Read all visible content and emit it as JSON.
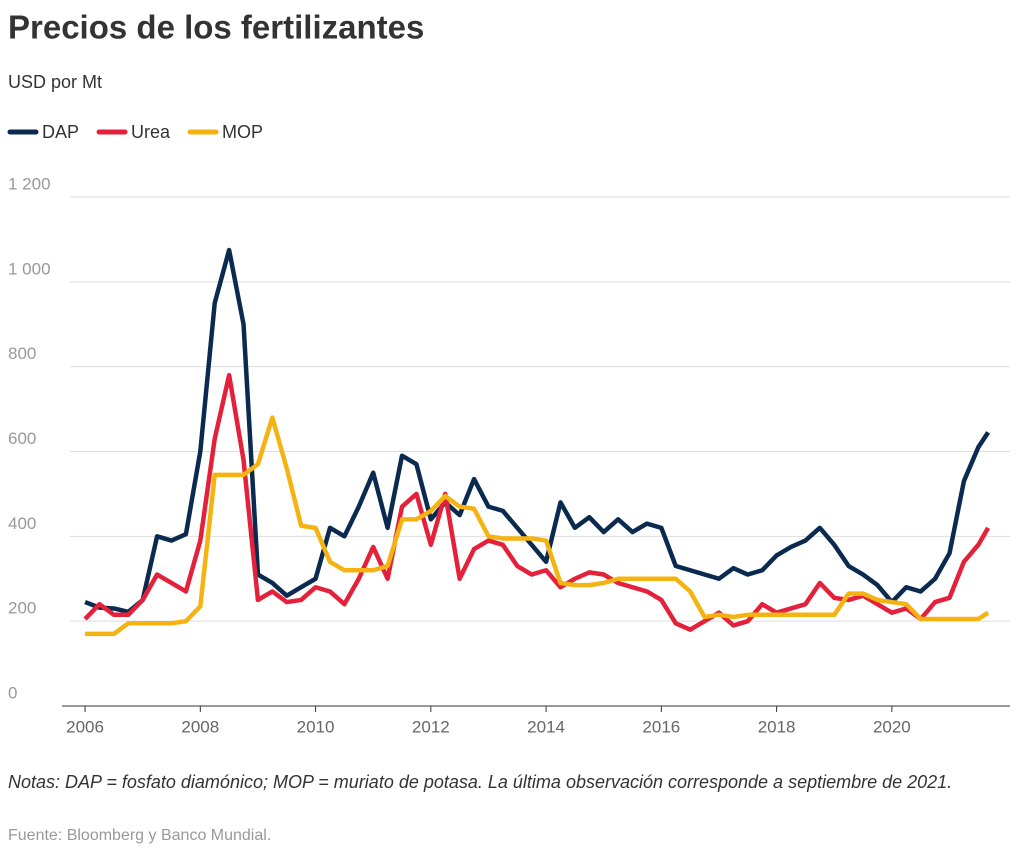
{
  "chart_data": {
    "type": "line",
    "title": "Precios de los fertilizantes",
    "subtitle": "USD por Mt",
    "note": "Notas: DAP = fosfato diamónico; MOP = muriato de potasa. La última observación corresponde a septiembre de 2021.",
    "source": "Fuente: Bloomberg y Banco Mundial.",
    "x": [
      2006,
      2006.25,
      2006.5,
      2006.75,
      2007,
      2007.25,
      2007.5,
      2007.75,
      2008,
      2008.25,
      2008.5,
      2008.75,
      2009,
      2009.25,
      2009.5,
      2009.75,
      2010,
      2010.25,
      2010.5,
      2010.75,
      2011,
      2011.25,
      2011.5,
      2011.75,
      2012,
      2012.25,
      2012.5,
      2012.75,
      2013,
      2013.25,
      2013.5,
      2013.75,
      2014,
      2014.25,
      2014.5,
      2014.75,
      2015,
      2015.25,
      2015.5,
      2015.75,
      2016,
      2016.25,
      2016.5,
      2016.75,
      2017,
      2017.25,
      2017.5,
      2017.75,
      2018,
      2018.25,
      2018.5,
      2018.75,
      2019,
      2019.25,
      2019.5,
      2019.75,
      2020,
      2020.25,
      2020.5,
      2020.75,
      2021,
      2021.25,
      2021.5,
      2021.67
    ],
    "series": [
      {
        "name": "DAP",
        "color": "#0b2a4f",
        "values": [
          245,
          232,
          230,
          222,
          250,
          400,
          390,
          405,
          600,
          950,
          1075,
          900,
          310,
          290,
          260,
          280,
          300,
          420,
          400,
          470,
          550,
          420,
          590,
          570,
          440,
          480,
          450,
          535,
          470,
          460,
          420,
          380,
          340,
          480,
          420,
          445,
          410,
          440,
          410,
          430,
          420,
          330,
          320,
          310,
          300,
          325,
          310,
          320,
          355,
          375,
          390,
          420,
          380,
          330,
          310,
          285,
          245,
          280,
          270,
          300,
          360,
          530,
          610,
          645
        ]
      },
      {
        "name": "Urea",
        "color": "#e5203a",
        "values": [
          205,
          240,
          215,
          215,
          250,
          310,
          290,
          270,
          390,
          630,
          780,
          580,
          250,
          270,
          245,
          250,
          280,
          270,
          240,
          300,
          375,
          300,
          470,
          500,
          380,
          500,
          300,
          370,
          390,
          380,
          330,
          310,
          320,
          280,
          300,
          315,
          310,
          290,
          280,
          270,
          250,
          195,
          180,
          200,
          220,
          190,
          200,
          240,
          220,
          230,
          240,
          290,
          255,
          250,
          260,
          240,
          220,
          230,
          205,
          245,
          255,
          340,
          380,
          420
        ]
      },
      {
        "name": "MOP",
        "color": "#f5b312",
        "values": [
          170,
          170,
          170,
          195,
          195,
          195,
          195,
          200,
          235,
          545,
          545,
          545,
          570,
          680,
          560,
          425,
          420,
          340,
          320,
          320,
          320,
          330,
          440,
          440,
          460,
          495,
          470,
          465,
          400,
          395,
          395,
          395,
          390,
          290,
          285,
          285,
          290,
          300,
          300,
          300,
          300,
          300,
          270,
          210,
          215,
          210,
          215,
          215,
          215,
          215,
          215,
          215,
          215,
          265,
          265,
          250,
          245,
          240,
          205,
          205,
          205,
          205,
          205,
          220
        ]
      }
    ],
    "xlim": [
      2005.6,
      2022.05
    ],
    "xticks": [
      2006,
      2008,
      2010,
      2012,
      2014,
      2016,
      2018,
      2020
    ],
    "ylim": [
      0,
      1200
    ],
    "yticks": [
      0,
      200,
      400,
      600,
      800,
      {
        "value": 1000,
        "label": "1 000"
      },
      {
        "value": 1200,
        "label": "1 200"
      }
    ],
    "grid": true,
    "legend": "top-left"
  }
}
